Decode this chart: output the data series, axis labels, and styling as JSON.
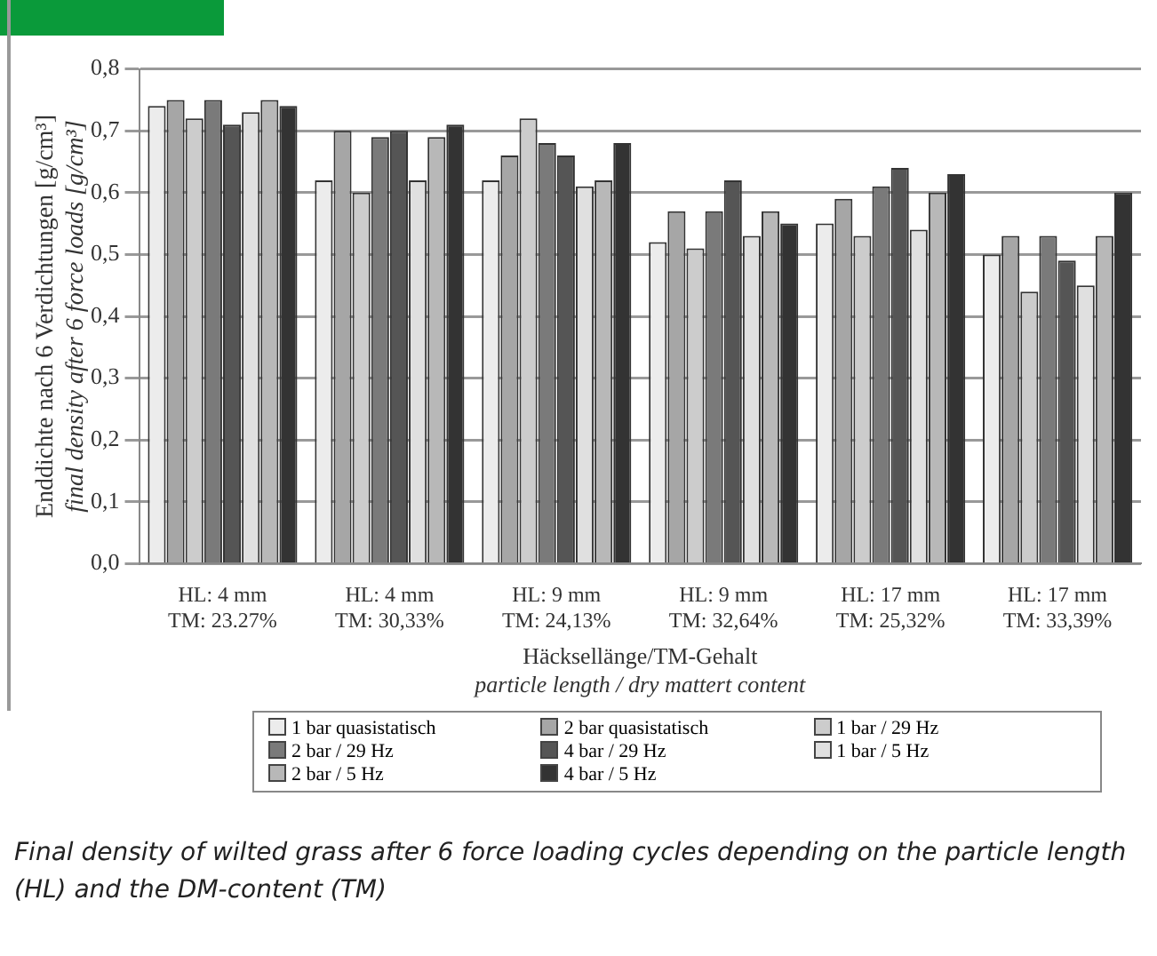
{
  "chart_data": {
    "type": "bar",
    "ylabel": "Enddichte nach 6 Verdichtungen [g/cm³]\nfinal density after 6 force loads [g/cm³]",
    "xlabel": "Häcksellänge/TM-Gehalt\nparticle length / dry mattert content",
    "annotations": [
      "Final density of wilted grass after 6 force loading cycles depending on the particle length (HL) and the DM-content (TM)"
    ],
    "categories": [
      "HL: 4 mm\nTM: 23.27%",
      "HL: 4 mm\nTM: 30,33%",
      "HL: 9 mm\nTM: 24,13%",
      "HL: 9 mm\nTM: 32,64%",
      "HL: 17 mm\nTM: 25,32%",
      "HL: 17 mm\nTM: 33,39%"
    ],
    "series": [
      {
        "name": "1 bar quasistatisch",
        "color": "#ececec",
        "values": [
          0.74,
          0.62,
          0.62,
          0.52,
          0.55,
          0.5
        ]
      },
      {
        "name": "2 bar quasistatisch",
        "color": "#a6a6a6",
        "values": [
          0.75,
          0.7,
          0.66,
          0.57,
          0.59,
          0.53
        ]
      },
      {
        "name": "1 bar / 29 Hz",
        "color": "#cccccc",
        "values": [
          0.72,
          0.6,
          0.72,
          0.51,
          0.53,
          0.44
        ]
      },
      {
        "name": "2 bar / 29 Hz",
        "color": "#7a7a7a",
        "values": [
          0.75,
          0.69,
          0.68,
          0.57,
          0.61,
          0.53
        ]
      },
      {
        "name": "4 bar / 29 Hz",
        "color": "#555555",
        "values": [
          0.71,
          0.7,
          0.66,
          0.62,
          0.64,
          0.49
        ]
      },
      {
        "name": "1 bar / 5 Hz",
        "color": "#e0e0e0",
        "values": [
          0.73,
          0.62,
          0.61,
          0.53,
          0.54,
          0.45
        ]
      },
      {
        "name": "2 bar / 5 Hz",
        "color": "#b8b8b8",
        "values": [
          0.75,
          0.69,
          0.62,
          0.57,
          0.6,
          0.53
        ]
      },
      {
        "name": "4 bar / 5 Hz",
        "color": "#333333",
        "values": [
          0.74,
          0.71,
          0.68,
          0.55,
          0.63,
          0.6
        ]
      }
    ],
    "ylim": [
      0,
      0.8
    ],
    "yticks": [
      {
        "value": 0,
        "label": "0,0"
      },
      {
        "value": 0.1,
        "label": "0,1"
      },
      {
        "value": 0.2,
        "label": "0,2"
      },
      {
        "value": 0.3,
        "label": "0,3"
      },
      {
        "value": 0.4,
        "label": "0,4"
      },
      {
        "value": 0.5,
        "label": "0,5"
      },
      {
        "value": 0.6,
        "label": "0,6"
      },
      {
        "value": 0.7,
        "label": "0,7"
      },
      {
        "value": 0.8,
        "label": "0,8"
      }
    ],
    "grid": "y",
    "legend": "bottom"
  }
}
